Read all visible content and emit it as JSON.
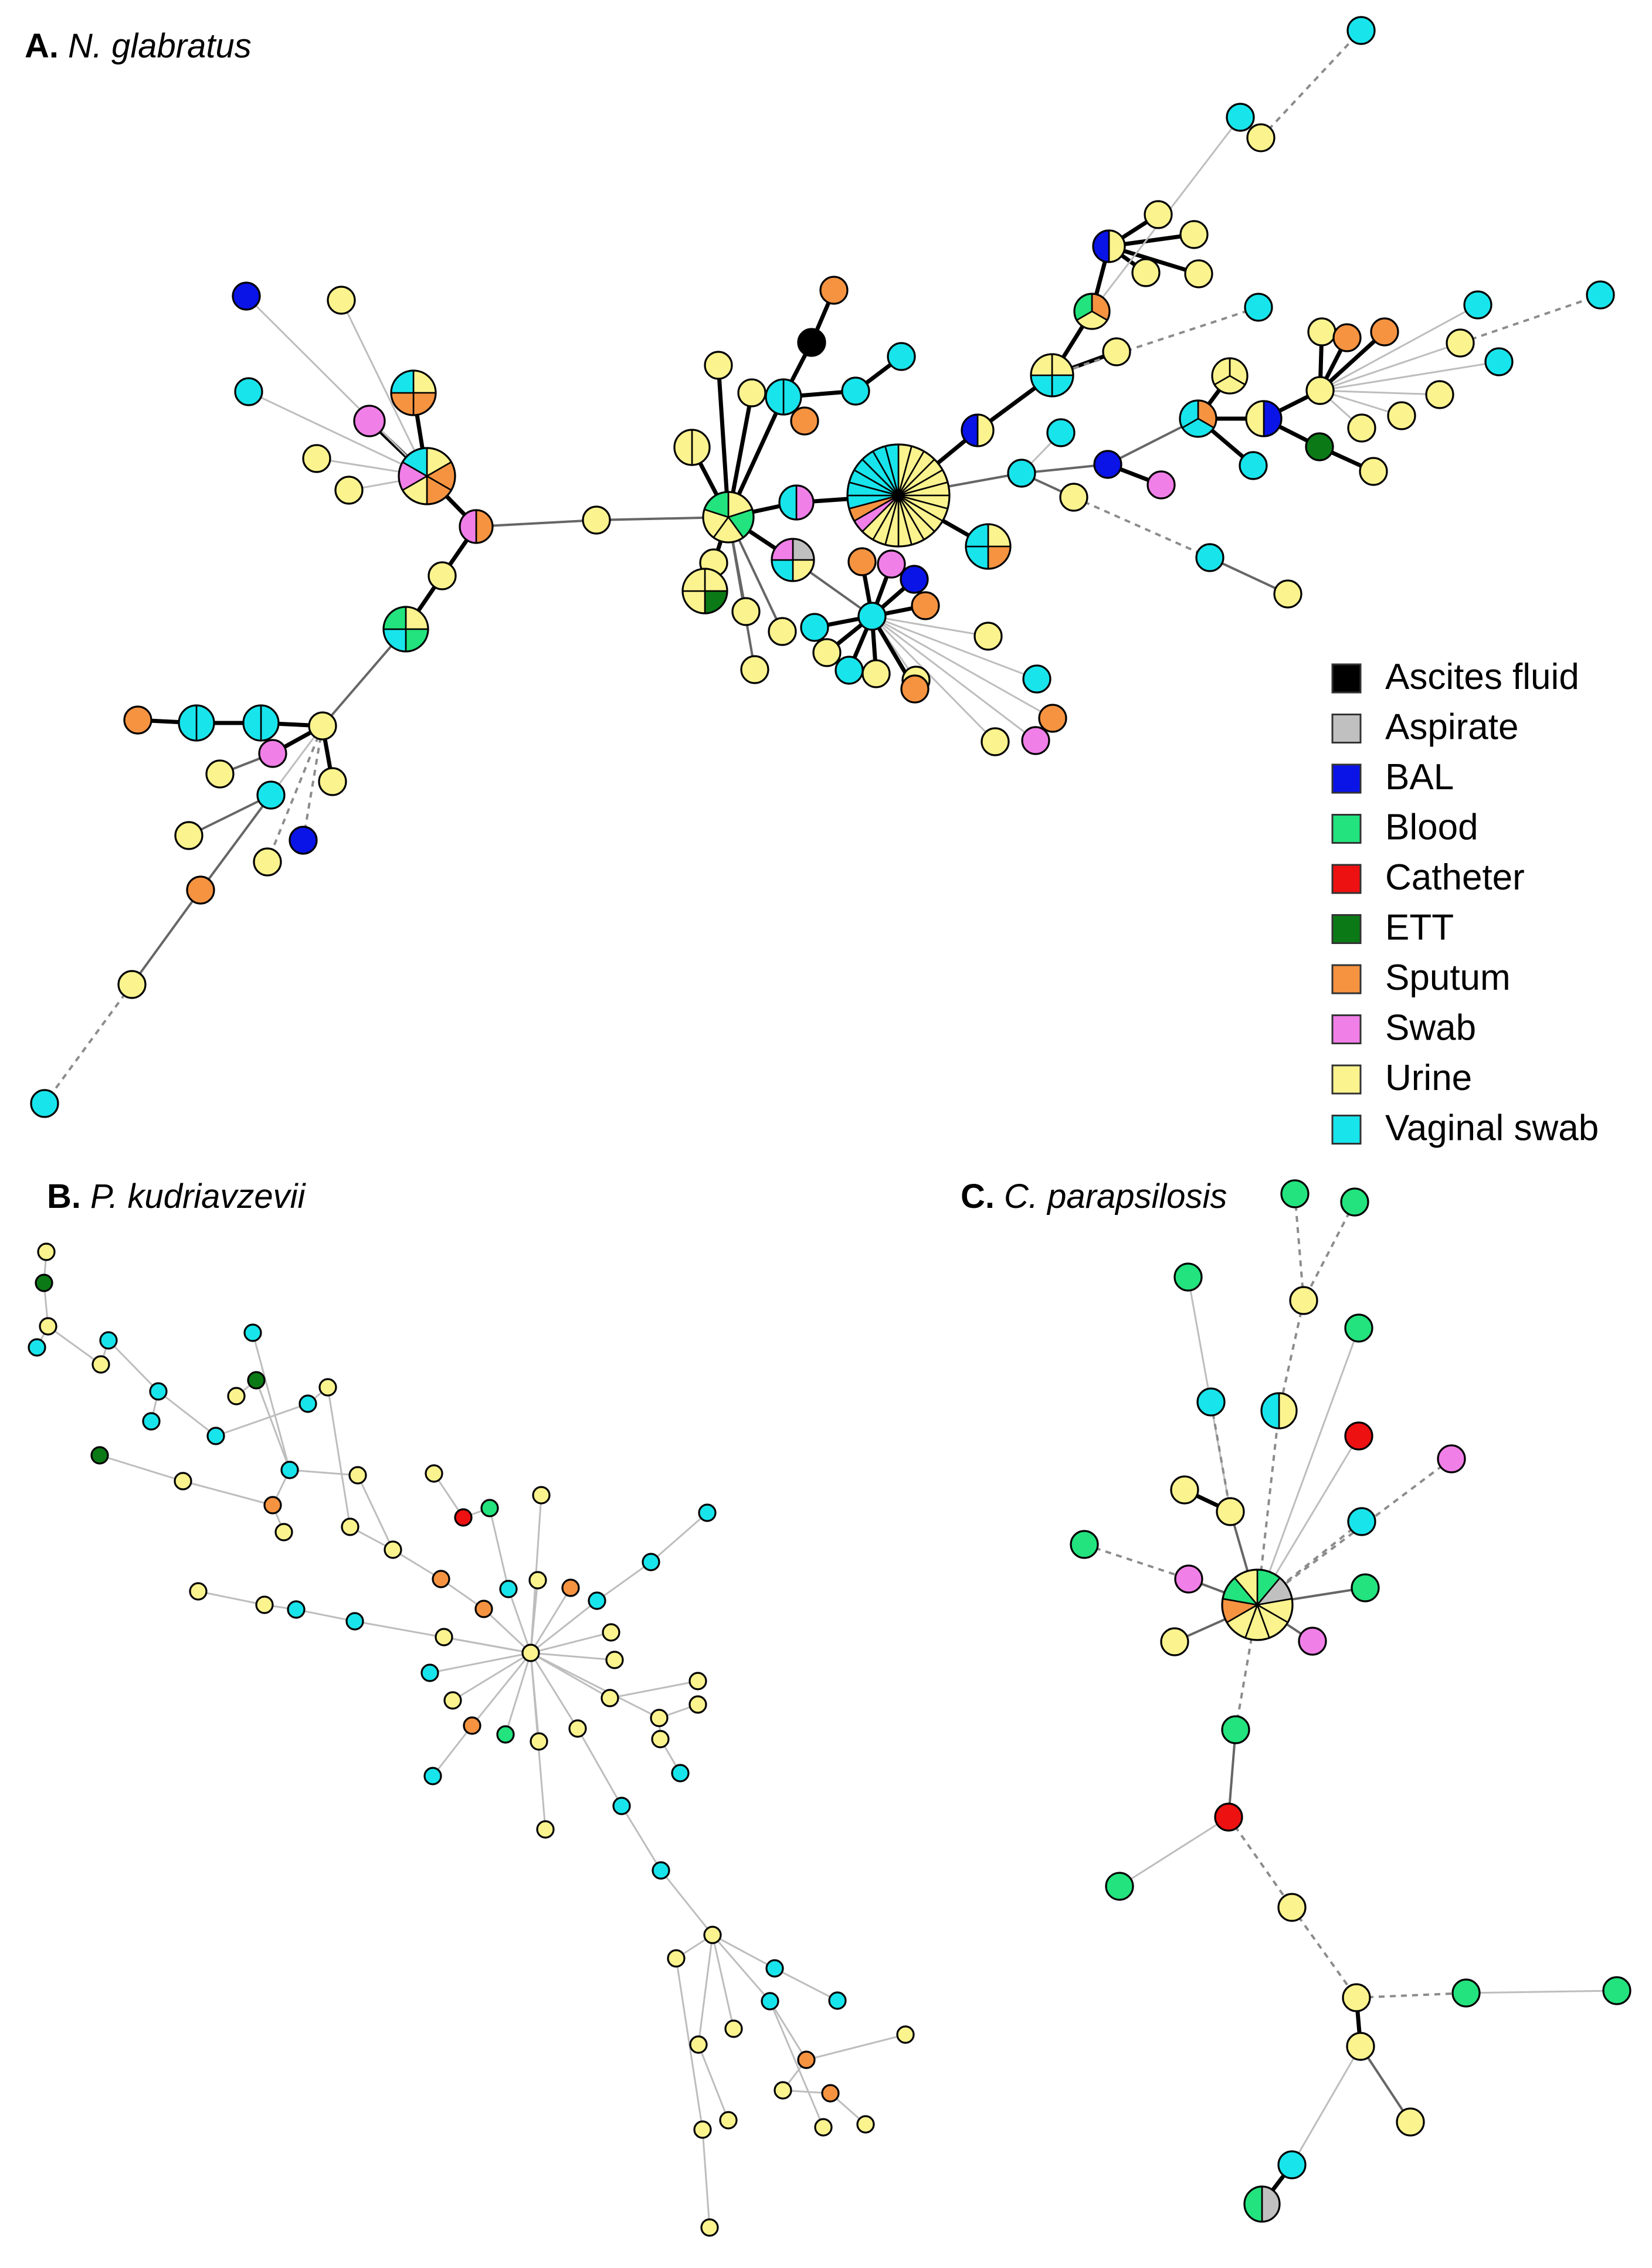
{
  "colors": {
    "ascites": "#000000",
    "aspirate": "#c0c0c0",
    "bal": "#0a14e6",
    "blood": "#22e37d",
    "catheter": "#ee1111",
    "ett": "#0b7a16",
    "sputum": "#f59341",
    "swab": "#f07fe8",
    "urine": "#fbf38e",
    "vaginal": "#18e4ec"
  },
  "legend": [
    {
      "key": "ascites",
      "label": "Ascites fluid"
    },
    {
      "key": "aspirate",
      "label": "Aspirate"
    },
    {
      "key": "bal",
      "label": "BAL"
    },
    {
      "key": "blood",
      "label": "Blood"
    },
    {
      "key": "catheter",
      "label": "Catheter"
    },
    {
      "key": "ett",
      "label": "ETT"
    },
    {
      "key": "sputum",
      "label": "Sputum"
    },
    {
      "key": "swab",
      "label": "Swab"
    },
    {
      "key": "urine",
      "label": "Urine"
    },
    {
      "key": "vaginal",
      "label": "Vaginal swab"
    }
  ],
  "panels": {
    "a": {
      "letter": "A.",
      "species": "N. glabratus"
    },
    "b": {
      "letter": "B.",
      "species": "P. kudriavzevii"
    },
    "c": {
      "letter": "C.",
      "species": "C. parapsilosis"
    }
  }
}
